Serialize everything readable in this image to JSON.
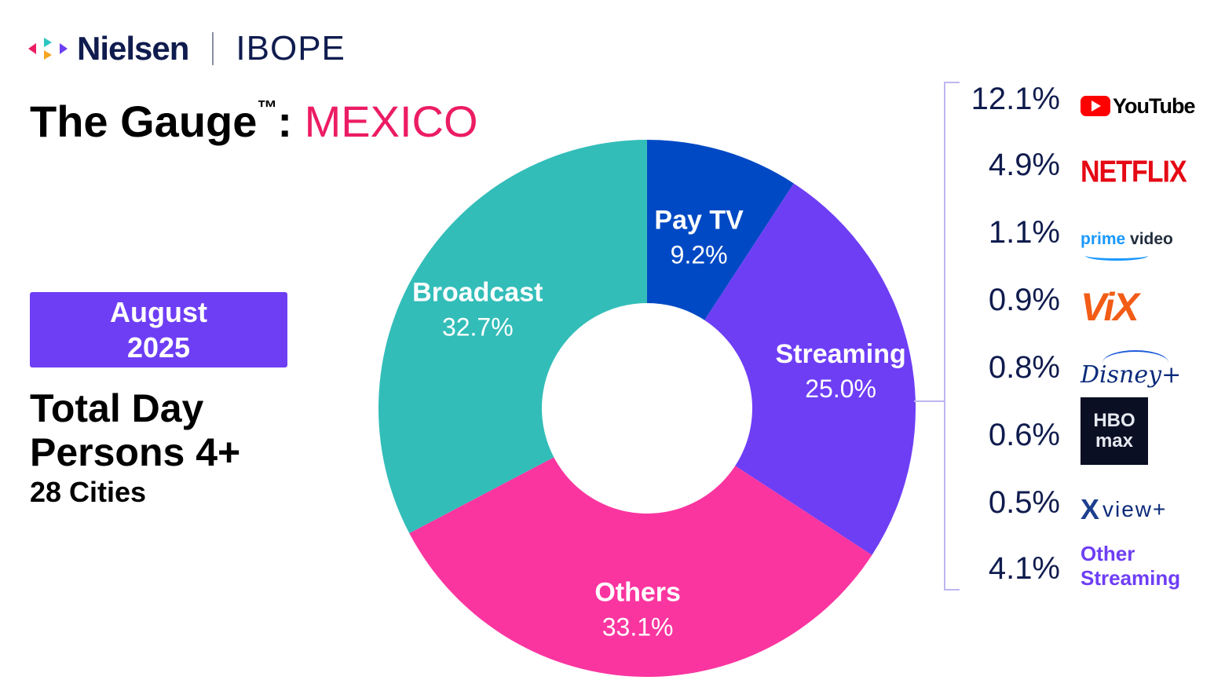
{
  "header": {
    "brand_icon": "nielsen-logo-icon",
    "brand_name": "Nielsen",
    "partner_name": "IBOPE"
  },
  "title": {
    "prefix": "The Gauge",
    "trademark": "™",
    "colon": ":",
    "country": "MEXICO",
    "country_color": "#ec1c64"
  },
  "period": {
    "month": "August",
    "year": "2025",
    "background_color": "#6e3ef5"
  },
  "measure": {
    "line1": "Total Day",
    "line2": "Persons 4+",
    "line3": "28 Cities"
  },
  "chart_data": {
    "type": "pie",
    "donut": true,
    "start": "top, clockwise",
    "slices": [
      {
        "label": "Pay TV",
        "value": 9.2,
        "value_label": "9.2%",
        "color": "#0049c4"
      },
      {
        "label": "Streaming",
        "value": 25.0,
        "value_label": "25.0%",
        "color": "#6e3ef5"
      },
      {
        "label": "Others",
        "value": 33.1,
        "value_label": "33.1%",
        "color": "#fa35a0"
      },
      {
        "label": "Broadcast",
        "value": 32.7,
        "value_label": "32.7%",
        "color": "#33bdb9"
      }
    ],
    "streaming_breakdown": [
      {
        "service": "YouTube",
        "value": 12.1,
        "value_label": "12.1%",
        "logo": "youtube-logo"
      },
      {
        "service": "NETFLIX",
        "value": 4.9,
        "value_label": "4.9%",
        "logo": "netflix-logo"
      },
      {
        "service": "prime video",
        "value": 1.1,
        "value_label": "1.1%",
        "logo": "prime-video-logo"
      },
      {
        "service": "ViX",
        "value": 0.9,
        "value_label": "0.9%",
        "logo": "vix-logo"
      },
      {
        "service": "Disney+",
        "value": 0.8,
        "value_label": "0.8%",
        "logo": "disney-plus-logo"
      },
      {
        "service": "HBO max",
        "value": 0.6,
        "value_label": "0.6%",
        "logo": "hbo-max-logo"
      },
      {
        "service": "view+",
        "value": 0.5,
        "value_label": "0.5%",
        "logo": "xview-plus-logo"
      },
      {
        "service": "Other Streaming",
        "value": 4.1,
        "value_label": "4.1%",
        "logo": "other-streaming-text"
      }
    ]
  },
  "logos": {
    "youtube": "YouTube",
    "netflix": "NETFLIX",
    "prime_word": "prime",
    "video_word": "video",
    "vix": "ViX",
    "disney": "Disney+",
    "hbo_line1": "HBO",
    "hbo_line2": "max",
    "xview_x": "X",
    "xview_rest": "view+",
    "other_line1": "Other",
    "other_line2": "Streaming"
  }
}
